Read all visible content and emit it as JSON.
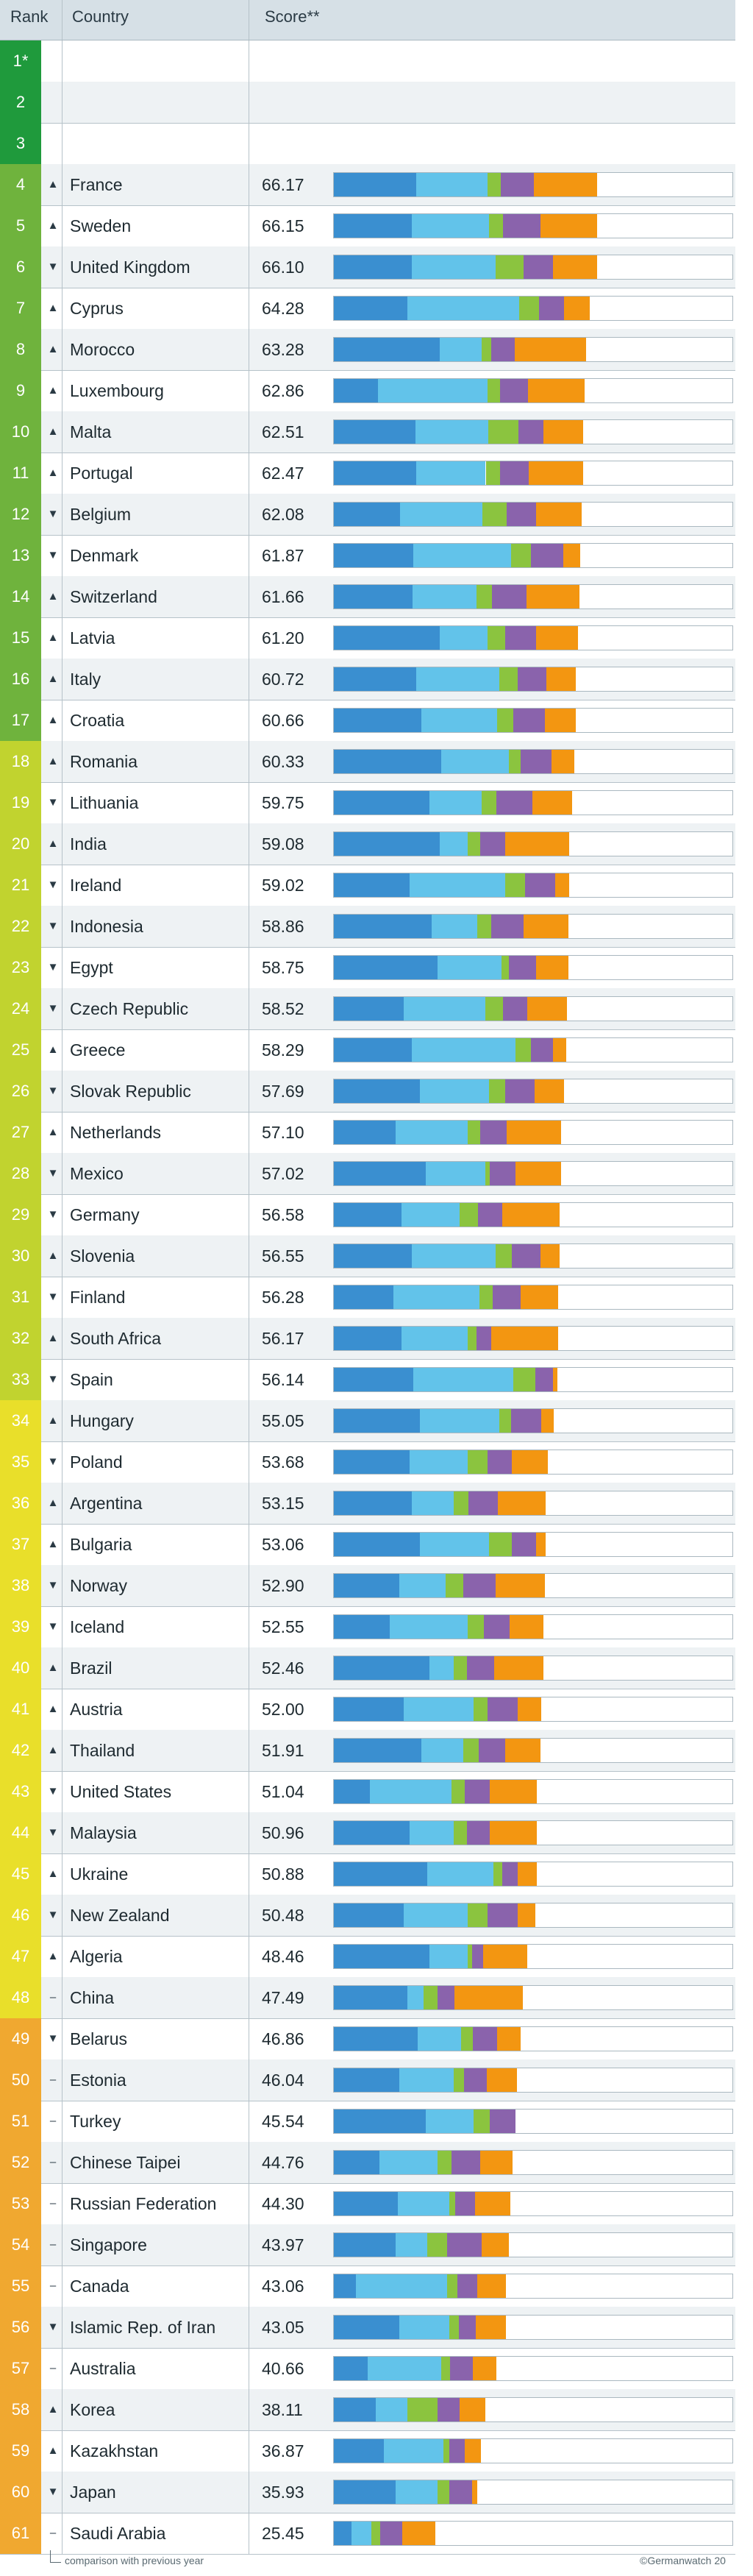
{
  "header": {
    "rank_label": "Rank",
    "country_label": "Country",
    "score_label": "Score**"
  },
  "footer": {
    "note": "comparison with previous year",
    "copyright": "©Germanwatch 20"
  },
  "colors": {
    "segments": [
      "#3a8fd0",
      "#62c3ea",
      "#8bc43f",
      "#8a63ac",
      "#f39611"
    ],
    "rank_scale": [
      "#1f9a3c",
      "#6fb33d",
      "#c1d32f",
      "#e9df2a",
      "#f0a830",
      "#c0282d"
    ]
  },
  "chart_data": {
    "type": "bar",
    "stacked": true,
    "orientation": "horizontal",
    "xlim": [
      0,
      100
    ],
    "rows": [
      {
        "rank": "1*",
        "trend": "",
        "country": "",
        "score": "",
        "segments": [],
        "tier": 0
      },
      {
        "rank": "2",
        "trend": "",
        "country": "",
        "score": "",
        "segments": [],
        "tier": 0
      },
      {
        "rank": "3",
        "trend": "",
        "country": "",
        "score": "",
        "segments": [],
        "tier": 0
      },
      {
        "rank": "4",
        "trend": "▲",
        "country": "France",
        "score": "66.17",
        "segments": [
          20.6,
          18.0,
          3.2,
          8.3,
          16.0
        ],
        "tier": 1
      },
      {
        "rank": "5",
        "trend": "▲",
        "country": "Sweden",
        "score": "66.15",
        "segments": [
          19.5,
          19.5,
          3.5,
          9.3,
          14.3
        ],
        "tier": 1
      },
      {
        "rank": "6",
        "trend": "▼",
        "country": "United Kingdom",
        "score": "66.10",
        "segments": [
          19.5,
          21.0,
          7.1,
          7.3,
          11.2
        ],
        "tier": 1
      },
      {
        "rank": "7",
        "trend": "▲",
        "country": "Cyprus",
        "score": "64.28",
        "segments": [
          18.5,
          28.0,
          4.9,
          6.3,
          6.6
        ],
        "tier": 1
      },
      {
        "rank": "8",
        "trend": "▲",
        "country": "Morocco",
        "score": "63.28",
        "segments": [
          26.5,
          10.5,
          2.5,
          5.9,
          17.9
        ],
        "tier": 1
      },
      {
        "rank": "9",
        "trend": "▲",
        "country": "Luxembourg",
        "score": "62.86",
        "segments": [
          11.0,
          27.5,
          3.2,
          7.1,
          14.1
        ],
        "tier": 1
      },
      {
        "rank": "10",
        "trend": "▲",
        "country": "Malta",
        "score": "62.51",
        "segments": [
          20.5,
          18.2,
          7.6,
          6.3,
          9.9
        ],
        "tier": 1
      },
      {
        "rank": "11",
        "trend": "▲",
        "country": "Portugal",
        "score": "62.47",
        "segments": [
          20.6,
          17.5,
          3.6,
          7.2,
          13.6
        ],
        "tier": 1
      },
      {
        "rank": "12",
        "trend": "▼",
        "country": "Belgium",
        "score": "62.08",
        "segments": [
          16.6,
          20.6,
          6.1,
          7.4,
          11.4
        ],
        "tier": 1
      },
      {
        "rank": "13",
        "trend": "▼",
        "country": "Denmark",
        "score": "61.87",
        "segments": [
          20.0,
          24.5,
          4.9,
          8.1,
          4.4
        ],
        "tier": 1
      },
      {
        "rank": "14",
        "trend": "▲",
        "country": "Switzerland",
        "score": "61.66",
        "segments": [
          19.8,
          16.0,
          3.8,
          8.8,
          13.3
        ],
        "tier": 1
      },
      {
        "rank": "15",
        "trend": "▲",
        "country": "Latvia",
        "score": "61.20",
        "segments": [
          26.5,
          12.0,
          4.5,
          7.7,
          10.5
        ],
        "tier": 1
      },
      {
        "rank": "16",
        "trend": "▲",
        "country": "Italy",
        "score": "60.72",
        "segments": [
          20.6,
          21.0,
          4.6,
          7.2,
          7.3
        ],
        "tier": 1
      },
      {
        "rank": "17",
        "trend": "▲",
        "country": "Croatia",
        "score": "60.66",
        "segments": [
          22.0,
          19.0,
          4.1,
          7.8,
          7.8
        ],
        "tier": 1
      },
      {
        "rank": "18",
        "trend": "▲",
        "country": "Romania",
        "score": "60.33",
        "segments": [
          27.0,
          17.0,
          2.9,
          7.8,
          5.6
        ],
        "tier": 2
      },
      {
        "rank": "19",
        "trend": "▼",
        "country": "Lithuania",
        "score": "59.75",
        "segments": [
          24.0,
          13.0,
          3.7,
          9.2,
          9.9
        ],
        "tier": 2
      },
      {
        "rank": "20",
        "trend": "▲",
        "country": "India",
        "score": "59.08",
        "segments": [
          26.5,
          7.0,
          3.3,
          6.1,
          16.2
        ],
        "tier": 2
      },
      {
        "rank": "21",
        "trend": "▼",
        "country": "Ireland",
        "score": "59.02",
        "segments": [
          19.0,
          24.0,
          4.9,
          7.7,
          3.4
        ],
        "tier": 2
      },
      {
        "rank": "22",
        "trend": "▼",
        "country": "Indonesia",
        "score": "58.86",
        "segments": [
          24.5,
          11.5,
          3.4,
          8.2,
          11.3
        ],
        "tier": 2
      },
      {
        "rank": "23",
        "trend": "▼",
        "country": "Egypt",
        "score": "58.75",
        "segments": [
          26.0,
          16.0,
          2.0,
          6.8,
          8.0
        ],
        "tier": 2
      },
      {
        "rank": "24",
        "trend": "▼",
        "country": "Czech Republic",
        "score": "58.52",
        "segments": [
          17.5,
          20.5,
          4.4,
          6.1,
          10.0
        ],
        "tier": 2
      },
      {
        "rank": "25",
        "trend": "▲",
        "country": "Greece",
        "score": "58.29",
        "segments": [
          19.5,
          26.0,
          3.9,
          5.6,
          3.3
        ],
        "tier": 2
      },
      {
        "rank": "26",
        "trend": "▼",
        "country": "Slovak Republic",
        "score": "57.69",
        "segments": [
          21.5,
          17.5,
          4.0,
          7.4,
          7.3
        ],
        "tier": 2
      },
      {
        "rank": "27",
        "trend": "▲",
        "country": "Netherlands",
        "score": "57.10",
        "segments": [
          15.5,
          18.0,
          3.3,
          6.6,
          13.7
        ],
        "tier": 2
      },
      {
        "rank": "28",
        "trend": "▼",
        "country": "Mexico",
        "score": "57.02",
        "segments": [
          23.0,
          15.0,
          1.2,
          6.4,
          11.4
        ],
        "tier": 2
      },
      {
        "rank": "29",
        "trend": "▼",
        "country": "Germany",
        "score": "56.58",
        "segments": [
          17.0,
          14.5,
          4.6,
          6.1,
          14.4
        ],
        "tier": 2
      },
      {
        "rank": "30",
        "trend": "▲",
        "country": "Slovenia",
        "score": "56.55",
        "segments": [
          19.5,
          21.0,
          4.2,
          7.2,
          4.7
        ],
        "tier": 2
      },
      {
        "rank": "31",
        "trend": "▼",
        "country": "Finland",
        "score": "56.28",
        "segments": [
          15.0,
          21.5,
          3.3,
          7.0,
          9.5
        ],
        "tier": 2
      },
      {
        "rank": "32",
        "trend": "▲",
        "country": "South Africa",
        "score": "56.17",
        "segments": [
          17.0,
          16.5,
          2.3,
          3.6,
          16.8
        ],
        "tier": 2
      },
      {
        "rank": "33",
        "trend": "▼",
        "country": "Spain",
        "score": "56.14",
        "segments": [
          20.0,
          25.0,
          5.6,
          4.4,
          1.1
        ],
        "tier": 2
      },
      {
        "rank": "34",
        "trend": "▲",
        "country": "Hungary",
        "score": "55.05",
        "segments": [
          21.5,
          20.0,
          3.0,
          7.5,
          3.1
        ],
        "tier": 3
      },
      {
        "rank": "35",
        "trend": "▼",
        "country": "Poland",
        "score": "53.68",
        "segments": [
          19.0,
          14.5,
          5.0,
          6.1,
          9.1
        ],
        "tier": 3
      },
      {
        "rank": "36",
        "trend": "▲",
        "country": "Argentina",
        "score": "53.15",
        "segments": [
          19.5,
          10.5,
          3.7,
          7.4,
          12.1
        ],
        "tier": 3
      },
      {
        "rank": "37",
        "trend": "▲",
        "country": "Bulgaria",
        "score": "53.06",
        "segments": [
          21.5,
          17.5,
          5.6,
          6.2,
          2.3
        ],
        "tier": 3
      },
      {
        "rank": "38",
        "trend": "▼",
        "country": "Norway",
        "score": "52.90",
        "segments": [
          16.5,
          11.5,
          4.5,
          8.1,
          12.3
        ],
        "tier": 3
      },
      {
        "rank": "39",
        "trend": "▼",
        "country": "Iceland",
        "score": "52.55",
        "segments": [
          14.0,
          19.5,
          4.2,
          6.4,
          8.5
        ],
        "tier": 3
      },
      {
        "rank": "40",
        "trend": "▲",
        "country": "Brazil",
        "score": "52.46",
        "segments": [
          24.0,
          6.0,
          3.4,
          6.9,
          12.2
        ],
        "tier": 3
      },
      {
        "rank": "41",
        "trend": "▲",
        "country": "Austria",
        "score": "52.00",
        "segments": [
          17.5,
          17.5,
          3.5,
          7.6,
          5.9
        ],
        "tier": 3
      },
      {
        "rank": "42",
        "trend": "▲",
        "country": "Thailand",
        "score": "51.91",
        "segments": [
          22.0,
          10.5,
          3.9,
          6.6,
          8.9
        ],
        "tier": 3
      },
      {
        "rank": "43",
        "trend": "▼",
        "country": "United States",
        "score": "51.04",
        "segments": [
          9.0,
          20.5,
          3.3,
          6.4,
          11.8
        ],
        "tier": 3
      },
      {
        "rank": "44",
        "trend": "▼",
        "country": "Malaysia",
        "score": "50.96",
        "segments": [
          19.0,
          11.0,
          3.4,
          5.8,
          11.8
        ],
        "tier": 3
      },
      {
        "rank": "45",
        "trend": "▲",
        "country": "Ukraine",
        "score": "50.88",
        "segments": [
          23.5,
          16.5,
          2.2,
          3.9,
          4.8
        ],
        "tier": 3
      },
      {
        "rank": "46",
        "trend": "▼",
        "country": "New Zealand",
        "score": "50.48",
        "segments": [
          17.5,
          16.0,
          5.0,
          7.7,
          4.3
        ],
        "tier": 3
      },
      {
        "rank": "47",
        "trend": "▲",
        "country": "Algeria",
        "score": "48.46",
        "segments": [
          24.0,
          9.5,
          1.2,
          2.7,
          11.1
        ],
        "tier": 3
      },
      {
        "rank": "48",
        "trend": "–",
        "country": "China",
        "score": "47.49",
        "segments": [
          18.5,
          4.0,
          3.6,
          4.2,
          17.2
        ],
        "tier": 3
      },
      {
        "rank": "49",
        "trend": "▼",
        "country": "Belarus",
        "score": "46.86",
        "segments": [
          21.0,
          11.0,
          2.8,
          6.1,
          5.9
        ],
        "tier": 4
      },
      {
        "rank": "50",
        "trend": "–",
        "country": "Estonia",
        "score": "46.04",
        "segments": [
          16.5,
          13.5,
          2.6,
          5.7,
          7.7
        ],
        "tier": 4
      },
      {
        "rank": "51",
        "trend": "–",
        "country": "Turkey",
        "score": "45.54",
        "segments": [
          23.0,
          12.0,
          4.2,
          6.3,
          0.0
        ],
        "tier": 4
      },
      {
        "rank": "52",
        "trend": "–",
        "country": "Chinese Taipei",
        "score": "44.76",
        "segments": [
          11.5,
          14.5,
          3.5,
          7.2,
          8.1
        ],
        "tier": 4
      },
      {
        "rank": "53",
        "trend": "–",
        "country": "Russian Federation",
        "score": "44.30",
        "segments": [
          16.0,
          13.0,
          1.5,
          4.9,
          8.9
        ],
        "tier": 4
      },
      {
        "rank": "54",
        "trend": "–",
        "country": "Singapore",
        "score": "43.97",
        "segments": [
          15.5,
          8.0,
          5.0,
          8.5,
          7.0
        ],
        "tier": 4
      },
      {
        "rank": "55",
        "trend": "–",
        "country": "Canada",
        "score": "43.06",
        "segments": [
          5.5,
          23.0,
          2.5,
          5.0,
          7.1
        ],
        "tier": 4
      },
      {
        "rank": "56",
        "trend": "▼",
        "country": "Islamic Rep. of Iran",
        "score": "43.05",
        "segments": [
          16.5,
          12.5,
          2.3,
          4.3,
          7.5
        ],
        "tier": 4
      },
      {
        "rank": "57",
        "trend": "–",
        "country": "Australia",
        "score": "40.66",
        "segments": [
          8.5,
          18.5,
          2.1,
          5.7,
          5.9
        ],
        "tier": 4
      },
      {
        "rank": "58",
        "trend": "▲",
        "country": "Korea",
        "score": "38.11",
        "segments": [
          10.5,
          8.0,
          7.6,
          5.5,
          6.5
        ],
        "tier": 4
      },
      {
        "rank": "59",
        "trend": "▲",
        "country": "Kazakhstan",
        "score": "36.87",
        "segments": [
          12.5,
          15.0,
          1.5,
          3.8,
          4.1
        ],
        "tier": 4
      },
      {
        "rank": "60",
        "trend": "▼",
        "country": "Japan",
        "score": "35.93",
        "segments": [
          15.5,
          10.5,
          2.9,
          5.8,
          1.2
        ],
        "tier": 4
      },
      {
        "rank": "61",
        "trend": "–",
        "country": "Saudi Arabia",
        "score": "25.45",
        "segments": [
          4.5,
          5.0,
          2.2,
          5.4,
          8.4
        ],
        "tier": 4
      }
    ]
  }
}
